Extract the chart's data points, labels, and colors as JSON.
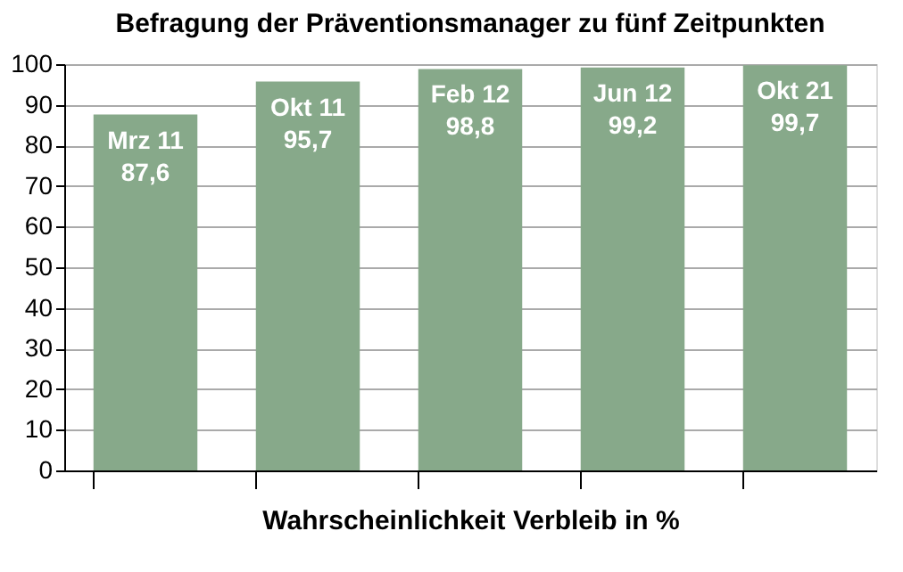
{
  "chart_data": {
    "type": "bar",
    "title": "Befragung der Präventionsmanager zu fünf Zeitpunkten",
    "xlabel": "Wahrscheinlichkeit Verbleib in %",
    "categories": [
      "Mrz 11",
      "Okt 11",
      "Feb 12",
      "Jun 12",
      "Okt 21"
    ],
    "values": [
      87.6,
      95.7,
      98.8,
      99.2,
      99.7
    ],
    "value_labels": [
      "87,6",
      "95,7",
      "98,8",
      "99,2",
      "99,7"
    ],
    "color": "#87a98a",
    "ylim": [
      0,
      100
    ],
    "yticks": [
      0,
      10,
      20,
      30,
      40,
      50,
      60,
      70,
      80,
      90,
      100
    ],
    "grid": "y"
  }
}
